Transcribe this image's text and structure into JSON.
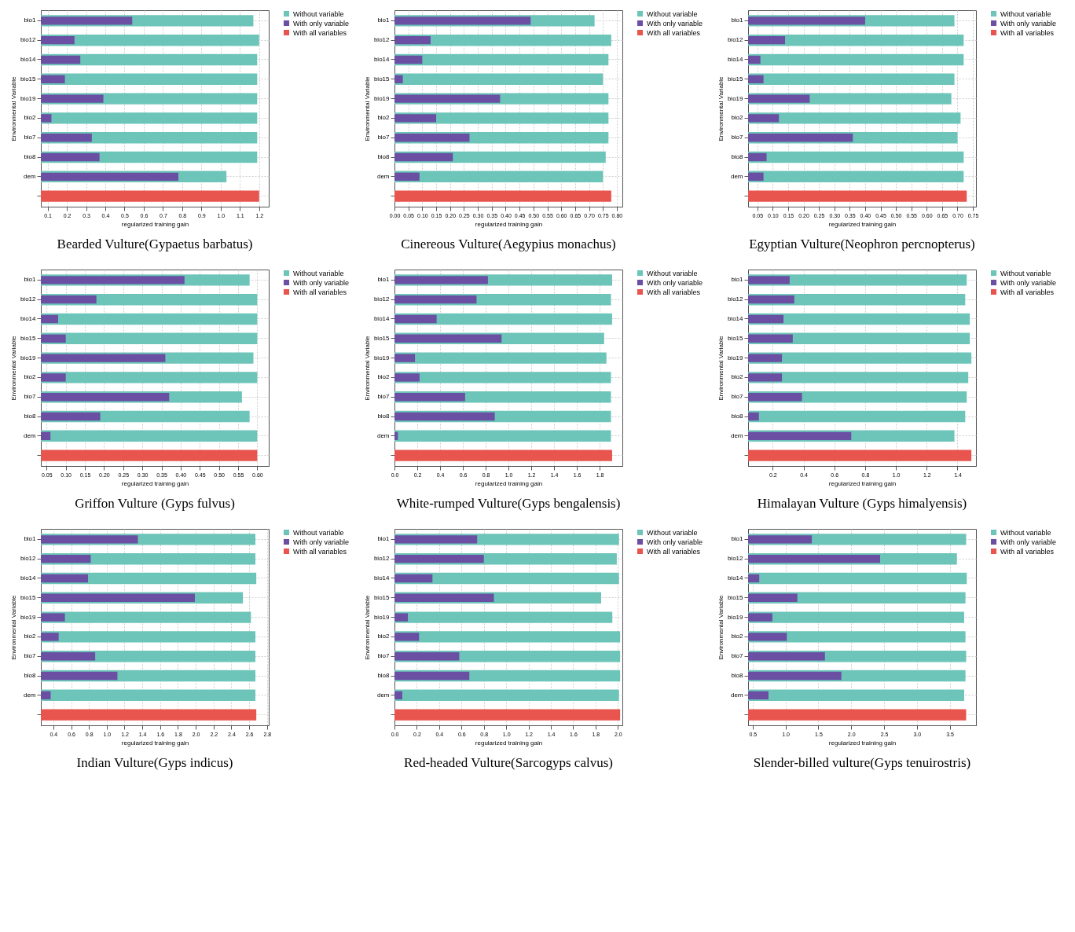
{
  "chart_data": [
    {
      "type": "bar",
      "orientation": "horizontal",
      "title": "Bearded Vulture(Gypaetus barbatus)",
      "xlabel": "regularized training gain",
      "ylabel": "Environmental Variable",
      "grid": true,
      "legend": "right",
      "categories": [
        "bio1",
        "bio12",
        "bio14",
        "bio15",
        "bio19",
        "bio2",
        "bio7",
        "bio8",
        "dem",
        null
      ],
      "xlim": [
        0.065,
        1.25
      ],
      "xticks": [
        0.1,
        0.2,
        0.3,
        0.4,
        0.5,
        0.6,
        0.7,
        0.8,
        0.9,
        {
          "value": 1,
          "label": "1.0"
        },
        1.1,
        1.2
      ],
      "series": [
        {
          "name": "Without variable",
          "color": "#6cc5b8",
          "values": [
            1.17,
            1.2,
            1.19,
            1.19,
            1.19,
            1.19,
            1.19,
            1.19,
            1.03,
            null
          ]
        },
        {
          "name": "With only variable",
          "color": "#6a4fa3",
          "values": [
            0.54,
            0.24,
            0.27,
            0.19,
            0.39,
            0.12,
            0.33,
            0.37,
            0.78,
            null
          ]
        },
        {
          "name": "With all variables",
          "color": "#e8554e",
          "values": [
            null,
            null,
            null,
            null,
            null,
            null,
            null,
            null,
            null,
            1.2
          ]
        }
      ]
    },
    {
      "type": "bar",
      "orientation": "horizontal",
      "title": "Cinereous Vulture(Aegypius monachus)",
      "xlabel": "regularized training gain",
      "ylabel": "Environmental Variable",
      "grid": true,
      "legend": "right",
      "categories": [
        "bio1",
        "bio12",
        "bio14",
        "bio15",
        "bio19",
        "bio2",
        "bio7",
        "bio8",
        "dem",
        null
      ],
      "xlim": [
        0,
        0.82
      ],
      "xticks": [
        {
          "value": 0,
          "label": "0.00"
        },
        0.05,
        {
          "value": 0.1,
          "label": "0.10"
        },
        0.15,
        {
          "value": 0.2,
          "label": "0.20"
        },
        0.25,
        {
          "value": 0.3,
          "label": "0.30"
        },
        0.35,
        {
          "value": 0.4,
          "label": "0.40"
        },
        0.45,
        {
          "value": 0.5,
          "label": "0.50"
        },
        0.55,
        {
          "value": 0.6,
          "label": "0.60"
        },
        0.65,
        {
          "value": 0.7,
          "label": "0.70"
        },
        0.75,
        {
          "value": 0.8,
          "label": "0.80"
        }
      ],
      "series": [
        {
          "name": "Without variable",
          "color": "#6cc5b8",
          "values": [
            0.72,
            0.78,
            0.77,
            0.75,
            0.77,
            0.77,
            0.77,
            0.76,
            0.75,
            null
          ]
        },
        {
          "name": "With only variable",
          "color": "#6a4fa3",
          "values": [
            0.49,
            0.13,
            0.1,
            0.03,
            0.38,
            0.15,
            0.27,
            0.21,
            0.09,
            null
          ]
        },
        {
          "name": "With all variables",
          "color": "#e8554e",
          "values": [
            null,
            null,
            null,
            null,
            null,
            null,
            null,
            null,
            null,
            0.78
          ]
        }
      ]
    },
    {
      "type": "bar",
      "orientation": "horizontal",
      "title": "Egyptian Vulture(Neophron percnopterus)",
      "xlabel": "regularized training gain",
      "ylabel": "Environmental Variable",
      "grid": true,
      "legend": "right",
      "categories": [
        "bio1",
        "bio12",
        "bio14",
        "bio15",
        "bio19",
        "bio2",
        "bio7",
        "bio8",
        "dem",
        null
      ],
      "xlim": [
        0.02,
        0.76
      ],
      "xticks": [
        0.05,
        {
          "value": 0.1,
          "label": "0.10"
        },
        0.15,
        {
          "value": 0.2,
          "label": "0.20"
        },
        0.25,
        {
          "value": 0.3,
          "label": "0.30"
        },
        0.35,
        {
          "value": 0.4,
          "label": "0.40"
        },
        0.45,
        {
          "value": 0.5,
          "label": "0.50"
        },
        0.55,
        {
          "value": 0.6,
          "label": "0.60"
        },
        0.65,
        {
          "value": 0.7,
          "label": "0.70"
        },
        0.75
      ],
      "series": [
        {
          "name": "Without variable",
          "color": "#6cc5b8",
          "values": [
            0.69,
            0.72,
            0.72,
            0.69,
            0.68,
            0.71,
            0.7,
            0.72,
            0.72,
            null
          ]
        },
        {
          "name": "With only variable",
          "color": "#6a4fa3",
          "values": [
            0.4,
            0.14,
            0.06,
            0.07,
            0.22,
            0.12,
            0.36,
            0.08,
            0.07,
            null
          ]
        },
        {
          "name": "With all variables",
          "color": "#e8554e",
          "values": [
            null,
            null,
            null,
            null,
            null,
            null,
            null,
            null,
            null,
            0.73
          ]
        }
      ]
    },
    {
      "type": "bar",
      "orientation": "horizontal",
      "title": "Griffon Vulture (Gyps fulvus)",
      "xlabel": "regularized training gain",
      "ylabel": "Environmental Variable",
      "grid": true,
      "legend": "right",
      "categories": [
        "bio1",
        "bio12",
        "bio14",
        "bio15",
        "bio19",
        "bio2",
        "bio7",
        "bio8",
        "dem",
        null
      ],
      "xlim": [
        0.035,
        0.63
      ],
      "xticks": [
        0.05,
        {
          "value": 0.1,
          "label": "0.10"
        },
        0.15,
        {
          "value": 0.2,
          "label": "0.20"
        },
        0.25,
        {
          "value": 0.3,
          "label": "0.30"
        },
        0.35,
        {
          "value": 0.4,
          "label": "0.40"
        },
        0.45,
        {
          "value": 0.5,
          "label": "0.50"
        },
        0.55,
        {
          "value": 0.6,
          "label": "0.60"
        }
      ],
      "series": [
        {
          "name": "Without variable",
          "color": "#6cc5b8",
          "values": [
            0.58,
            0.6,
            0.6,
            0.6,
            0.59,
            0.6,
            0.56,
            0.58,
            0.6,
            null
          ]
        },
        {
          "name": "With only variable",
          "color": "#6a4fa3",
          "values": [
            0.41,
            0.18,
            0.08,
            0.1,
            0.36,
            0.1,
            0.37,
            0.19,
            0.06,
            null
          ]
        },
        {
          "name": "With all variables",
          "color": "#e8554e",
          "values": [
            null,
            null,
            null,
            null,
            null,
            null,
            null,
            null,
            null,
            0.6
          ]
        }
      ]
    },
    {
      "type": "bar",
      "orientation": "horizontal",
      "title": "White-rumped Vulture(Gyps bengalensis)",
      "xlabel": "regularized training gain",
      "ylabel": "Environmental Variable",
      "grid": true,
      "legend": "right",
      "categories": [
        "bio1",
        "bio12",
        "bio14",
        "bio15",
        "bio19",
        "bio2",
        "bio7",
        "bio8",
        "dem",
        null
      ],
      "xlim": [
        0,
        2.0
      ],
      "xticks": [
        {
          "value": 0,
          "label": "0.0"
        },
        0.2,
        0.4,
        0.6,
        0.8,
        {
          "value": 1,
          "label": "1.0"
        },
        1.2,
        1.4,
        1.6,
        1.8
      ],
      "series": [
        {
          "name": "Without variable",
          "color": "#6cc5b8",
          "values": [
            1.91,
            1.9,
            1.91,
            1.84,
            1.86,
            1.9,
            1.9,
            1.9,
            1.9,
            null
          ]
        },
        {
          "name": "With only variable",
          "color": "#6a4fa3",
          "values": [
            0.82,
            0.72,
            0.37,
            0.94,
            0.18,
            0.22,
            0.62,
            0.88,
            0.03,
            null
          ]
        },
        {
          "name": "With all variables",
          "color": "#e8554e",
          "values": [
            null,
            null,
            null,
            null,
            null,
            null,
            null,
            null,
            null,
            1.91
          ]
        }
      ]
    },
    {
      "type": "bar",
      "orientation": "horizontal",
      "title": "Himalayan Vulture (Gyps himalyensis)",
      "xlabel": "regularized training gain",
      "ylabel": "Environmental Variable",
      "grid": true,
      "legend": "right",
      "categories": [
        "bio1",
        "bio12",
        "bio14",
        "bio15",
        "bio19",
        "bio2",
        "bio7",
        "bio8",
        "dem",
        null
      ],
      "xlim": [
        0.04,
        1.52
      ],
      "xticks": [
        0.2,
        0.4,
        0.6,
        0.8,
        {
          "value": 1,
          "label": "1.0"
        },
        1.2,
        1.4
      ],
      "series": [
        {
          "name": "Without variable",
          "color": "#6cc5b8",
          "values": [
            1.46,
            1.45,
            1.48,
            1.48,
            1.49,
            1.47,
            1.46,
            1.45,
            1.38,
            null
          ]
        },
        {
          "name": "With only variable",
          "color": "#6a4fa3",
          "values": [
            0.31,
            0.34,
            0.27,
            0.33,
            0.26,
            0.26,
            0.39,
            0.11,
            0.71,
            null
          ]
        },
        {
          "name": "With all variables",
          "color": "#e8554e",
          "values": [
            null,
            null,
            null,
            null,
            null,
            null,
            null,
            null,
            null,
            1.49
          ]
        }
      ]
    },
    {
      "type": "bar",
      "orientation": "horizontal",
      "title": "Indian Vulture(Gyps indicus)",
      "xlabel": "regularized training gain",
      "ylabel": "Environmental Variable",
      "grid": true,
      "legend": "right",
      "categories": [
        "bio1",
        "bio12",
        "bio14",
        "bio15",
        "bio19",
        "bio2",
        "bio7",
        "bio8",
        "dem",
        null
      ],
      "xlim": [
        0.26,
        2.82
      ],
      "xticks": [
        0.4,
        0.6,
        0.8,
        {
          "value": 1,
          "label": "1.0"
        },
        1.2,
        1.4,
        1.6,
        1.8,
        {
          "value": 2,
          "label": "2.0"
        },
        2.2,
        2.4,
        2.6,
        2.8
      ],
      "series": [
        {
          "name": "Without variable",
          "color": "#6cc5b8",
          "values": [
            2.67,
            2.67,
            2.68,
            2.53,
            2.62,
            2.67,
            2.67,
            2.67,
            2.67,
            null
          ]
        },
        {
          "name": "With only variable",
          "color": "#6a4fa3",
          "values": [
            1.35,
            0.82,
            0.79,
            1.99,
            0.53,
            0.46,
            0.87,
            1.12,
            0.37,
            null
          ]
        },
        {
          "name": "With all variables",
          "color": "#e8554e",
          "values": [
            null,
            null,
            null,
            null,
            null,
            null,
            null,
            null,
            null,
            2.68
          ]
        }
      ]
    },
    {
      "type": "bar",
      "orientation": "horizontal",
      "title": "Red-headed Vulture(Sarcogyps calvus)",
      "xlabel": "regularized training gain",
      "ylabel": "Environmental Variable",
      "grid": true,
      "legend": "right",
      "categories": [
        "bio1",
        "bio12",
        "bio14",
        "bio15",
        "bio19",
        "bio2",
        "bio7",
        "bio8",
        "dem",
        null
      ],
      "xlim": [
        0,
        2.04
      ],
      "xticks": [
        {
          "value": 0,
          "label": "0.0"
        },
        0.2,
        0.4,
        0.6,
        0.8,
        {
          "value": 1,
          "label": "1.0"
        },
        1.2,
        1.4,
        1.6,
        1.8,
        {
          "value": 2,
          "label": "2.0"
        }
      ],
      "series": [
        {
          "name": "Without variable",
          "color": "#6cc5b8",
          "values": [
            2.01,
            1.99,
            2.01,
            1.85,
            1.95,
            2.02,
            2.02,
            2.02,
            2.01,
            null
          ]
        },
        {
          "name": "With only variable",
          "color": "#6a4fa3",
          "values": [
            0.74,
            0.8,
            0.34,
            0.89,
            0.12,
            0.22,
            0.58,
            0.67,
            0.07,
            null
          ]
        },
        {
          "name": "With all variables",
          "color": "#e8554e",
          "values": [
            null,
            null,
            null,
            null,
            null,
            null,
            null,
            null,
            null,
            2.02
          ]
        }
      ]
    },
    {
      "type": "bar",
      "orientation": "horizontal",
      "title": "Slender-billed vulture(Gyps tenuirostris)",
      "xlabel": "regularized training gain",
      "ylabel": "Environmental Variable",
      "grid": true,
      "legend": "right",
      "categories": [
        "bio1",
        "bio12",
        "bio14",
        "bio15",
        "bio19",
        "bio2",
        "bio7",
        "bio8",
        "dem",
        null
      ],
      "xlim": [
        0.43,
        3.9
      ],
      "xticks": [
        0.5,
        {
          "value": 1,
          "label": "1.0"
        },
        1.5,
        {
          "value": 2,
          "label": "2.0"
        },
        2.5,
        {
          "value": 3,
          "label": "3.0"
        },
        3.5
      ],
      "series": [
        {
          "name": "Without variable",
          "color": "#6cc5b8",
          "values": [
            3.75,
            3.61,
            3.76,
            3.74,
            3.72,
            3.74,
            3.75,
            3.74,
            3.72,
            null
          ]
        },
        {
          "name": "With only variable",
          "color": "#6a4fa3",
          "values": [
            1.4,
            2.44,
            0.6,
            1.18,
            0.8,
            1.02,
            1.6,
            1.85,
            0.74,
            null
          ]
        },
        {
          "name": "With all variables",
          "color": "#e8554e",
          "values": [
            null,
            null,
            null,
            null,
            null,
            null,
            null,
            null,
            null,
            3.75
          ]
        }
      ]
    }
  ]
}
